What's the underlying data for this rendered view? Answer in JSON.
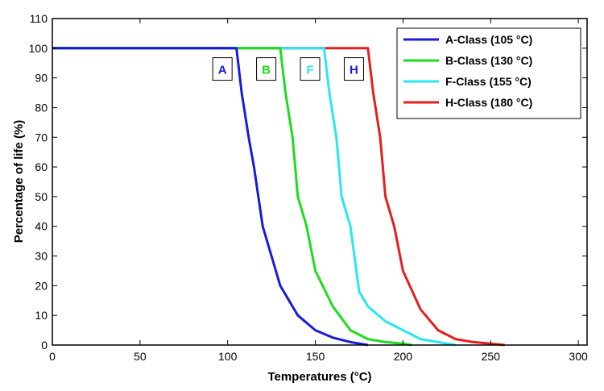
{
  "chart_data": {
    "type": "line",
    "title": "",
    "xlabel": "Temperatures (°C)",
    "ylabel": "Percentage of life (%)",
    "xlim": [
      0,
      305
    ],
    "ylim": [
      0,
      110
    ],
    "xticks": [
      0,
      50,
      100,
      150,
      200,
      250,
      300
    ],
    "yticks": [
      0,
      10,
      20,
      30,
      40,
      50,
      60,
      70,
      80,
      90,
      100,
      110
    ],
    "grid": false,
    "legend_position": "top-right",
    "series": [
      {
        "name": "A-Class (105 °C)",
        "color": "#1a1adc",
        "x": [
          0,
          105,
          108,
          112,
          115,
          120,
          125,
          130,
          140,
          150,
          160,
          170,
          180
        ],
        "y": [
          100,
          100,
          85,
          70,
          60,
          40,
          30,
          20,
          10,
          5,
          2.5,
          1,
          0
        ]
      },
      {
        "name": "B-Class (130 °C)",
        "color": "#1edc1e",
        "x": [
          0,
          130,
          133,
          137,
          140,
          145,
          150,
          160,
          170,
          180,
          190,
          200,
          205
        ],
        "y": [
          100,
          100,
          85,
          70,
          50,
          40,
          25,
          13,
          5,
          2,
          1,
          0.5,
          0
        ]
      },
      {
        "name": "F-Class (155 °C)",
        "color": "#2ae6f0",
        "x": [
          0,
          155,
          158,
          162,
          165,
          170,
          175,
          180,
          190,
          200,
          210,
          220,
          230
        ],
        "y": [
          100,
          100,
          85,
          70,
          50,
          40,
          18,
          13,
          8,
          5,
          2,
          1,
          0
        ]
      },
      {
        "name": "H-Class (180 °C)",
        "color": "#e61e1e",
        "x": [
          0,
          180,
          183,
          187,
          190,
          195,
          200,
          210,
          220,
          230,
          240,
          250,
          258
        ],
        "y": [
          100,
          100,
          85,
          70,
          50,
          40,
          25,
          12,
          5,
          2,
          1,
          0.5,
          0
        ]
      }
    ],
    "annotations": [
      {
        "text": "A",
        "x": 97,
        "y": 93,
        "color": "#1a1adc"
      },
      {
        "text": "B",
        "x": 122,
        "y": 93,
        "color": "#1edc1e"
      },
      {
        "text": "F",
        "x": 147,
        "y": 93,
        "color": "#2ae6f0"
      },
      {
        "text": "H",
        "x": 172,
        "y": 93,
        "color": "#1a1adc"
      }
    ]
  }
}
